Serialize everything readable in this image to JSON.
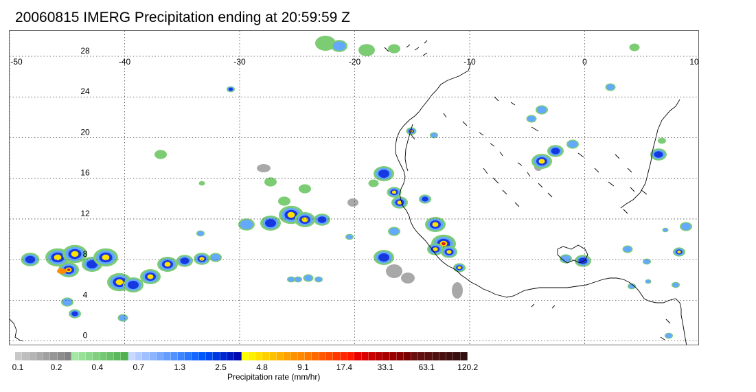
{
  "title": "20060815 IMERG Precipitation ending at 20:59:59 Z",
  "map": {
    "lon_range": [
      -50,
      10
    ],
    "lat_range": [
      -0.5,
      30.5
    ],
    "lon_ticks": [
      "-50",
      "-40",
      "-30",
      "-20",
      "-10",
      "0",
      "10"
    ],
    "lat_ticks": [
      "0",
      "4",
      "8",
      "12",
      "16",
      "20",
      "24",
      "28"
    ],
    "gridlines": "dotted",
    "coastline_color": "#000000"
  },
  "colorbar": {
    "title": "Precipitation rate (mm/hr)",
    "tick_labels": [
      "0.1",
      "0.2",
      "0.4",
      "0.7",
      "1.3",
      "2.5",
      "4.8",
      "9.1",
      "17.4",
      "33.1",
      "63.1",
      "120.2"
    ],
    "colors": [
      "#c8c8c8",
      "#bebebe",
      "#b4b4b4",
      "#aaaaaa",
      "#a0a0a0",
      "#969696",
      "#8c8c8c",
      "#828282",
      "#a4e8a4",
      "#98e098",
      "#8cd88c",
      "#80d080",
      "#74c874",
      "#68c068",
      "#5cb85c",
      "#50b050",
      "#c8d8ff",
      "#b4ccff",
      "#a0c0ff",
      "#8cb4ff",
      "#78a8ff",
      "#649cff",
      "#5090ff",
      "#3c84ff",
      "#2878ff",
      "#1468ff",
      "#0058ff",
      "#0048f0",
      "#0038e0",
      "#0028d0",
      "#0018c0",
      "#0008b0",
      "#ffff00",
      "#fff000",
      "#ffe000",
      "#ffd000",
      "#ffc000",
      "#ffb000",
      "#ffa000",
      "#ff9000",
      "#ff8800",
      "#ff7800",
      "#ff6800",
      "#ff5800",
      "#ff4800",
      "#ff3800",
      "#ff2800",
      "#ff1800",
      "#e80000",
      "#d80000",
      "#c80000",
      "#b80000",
      "#a80000",
      "#980000",
      "#880000",
      "#780000",
      "#681010",
      "#601010",
      "#581010",
      "#501010",
      "#481010",
      "#401010",
      "#381010",
      "#301010"
    ]
  },
  "colors": {
    "precip_gray": "#a8a8a8",
    "precip_green": "#7ccc74",
    "precip_lightblue": "#64a8ff",
    "precip_blue": "#1638e0",
    "precip_yellow": "#ffe000",
    "precip_orange": "#ff8c00",
    "precip_red": "#e02020"
  }
}
